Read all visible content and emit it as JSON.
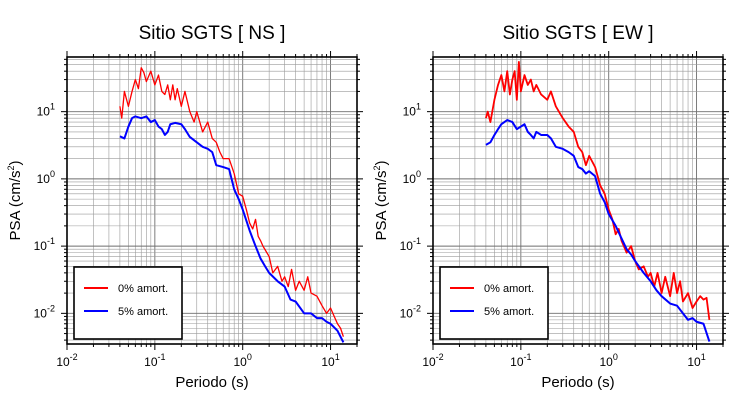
{
  "chart_data": [
    {
      "type": "line",
      "title": "Sitio SGTS [ NS ]",
      "xlabel": "Periodo (s)",
      "ylabel_base": "PSA (cm/s",
      "ylabel_sup": "2",
      "ylabel_end": ")",
      "xscale": "log",
      "yscale": "log",
      "xlim": [
        0.01,
        20
      ],
      "ylim": [
        0.0035,
        65
      ],
      "grid": true,
      "legend_position": "bottom-left",
      "x_ticks": [
        {
          "value": 0.01,
          "base": "10",
          "exp": "-2"
        },
        {
          "value": 0.1,
          "base": "10",
          "exp": "-1"
        },
        {
          "value": 1,
          "base": "10",
          "exp": "0"
        },
        {
          "value": 10,
          "base": "10",
          "exp": "1"
        }
      ],
      "y_ticks": [
        {
          "value": 0.01,
          "base": "10",
          "exp": "-2"
        },
        {
          "value": 0.1,
          "base": "10",
          "exp": "-1"
        },
        {
          "value": 1,
          "base": "10",
          "exp": "0"
        },
        {
          "value": 10,
          "base": "10",
          "exp": "1"
        }
      ],
      "series": [
        {
          "name": "0% amort.",
          "color": "#ff0000",
          "width": 1.3,
          "points": [
            [
              0.04,
              12
            ],
            [
              0.042,
              8
            ],
            [
              0.045,
              20
            ],
            [
              0.05,
              12
            ],
            [
              0.055,
              20
            ],
            [
              0.06,
              30
            ],
            [
              0.065,
              22
            ],
            [
              0.07,
              45
            ],
            [
              0.075,
              38
            ],
            [
              0.08,
              28
            ],
            [
              0.09,
              40
            ],
            [
              0.1,
              25
            ],
            [
              0.11,
              35
            ],
            [
              0.12,
              20
            ],
            [
              0.13,
              18
            ],
            [
              0.14,
              25
            ],
            [
              0.15,
              15
            ],
            [
              0.16,
              25
            ],
            [
              0.17,
              15
            ],
            [
              0.18,
              22
            ],
            [
              0.2,
              12
            ],
            [
              0.22,
              20
            ],
            [
              0.25,
              10
            ],
            [
              0.28,
              7
            ],
            [
              0.3,
              10
            ],
            [
              0.35,
              5
            ],
            [
              0.4,
              7
            ],
            [
              0.45,
              4
            ],
            [
              0.5,
              3.5
            ],
            [
              0.55,
              2.5
            ],
            [
              0.6,
              2
            ],
            [
              0.7,
              2
            ],
            [
              0.8,
              1.2
            ],
            [
              0.9,
              0.6
            ],
            [
              1.0,
              0.55
            ],
            [
              1.1,
              0.35
            ],
            [
              1.2,
              0.22
            ],
            [
              1.3,
              0.18
            ],
            [
              1.4,
              0.25
            ],
            [
              1.5,
              0.14
            ],
            [
              1.6,
              0.12
            ],
            [
              1.7,
              0.1
            ],
            [
              2.0,
              0.07
            ],
            [
              2.2,
              0.04
            ],
            [
              2.5,
              0.05
            ],
            [
              2.8,
              0.03
            ],
            [
              3.0,
              0.035
            ],
            [
              3.3,
              0.025
            ],
            [
              3.6,
              0.045
            ],
            [
              4.0,
              0.022
            ],
            [
              4.4,
              0.03
            ],
            [
              5.0,
              0.022
            ],
            [
              5.5,
              0.035
            ],
            [
              6.0,
              0.02
            ],
            [
              7.0,
              0.018
            ],
            [
              8.0,
              0.013
            ],
            [
              9.0,
              0.01
            ],
            [
              10.0,
              0.012
            ],
            [
              11.0,
              0.009
            ],
            [
              12.0,
              0.007
            ],
            [
              13.0,
              0.006
            ],
            [
              14.0,
              0.0045
            ]
          ]
        },
        {
          "name": "5% amort.",
          "color": "#0000ff",
          "width": 2,
          "points": [
            [
              0.04,
              4.3
            ],
            [
              0.045,
              4
            ],
            [
              0.05,
              6
            ],
            [
              0.055,
              8
            ],
            [
              0.06,
              8.5
            ],
            [
              0.07,
              8
            ],
            [
              0.08,
              8.5
            ],
            [
              0.09,
              7
            ],
            [
              0.1,
              7.5
            ],
            [
              0.11,
              6
            ],
            [
              0.12,
              5.5
            ],
            [
              0.13,
              4.5
            ],
            [
              0.14,
              5
            ],
            [
              0.15,
              6.5
            ],
            [
              0.17,
              6.8
            ],
            [
              0.2,
              6.5
            ],
            [
              0.22,
              5.5
            ],
            [
              0.25,
              4.2
            ],
            [
              0.3,
              3.5
            ],
            [
              0.35,
              3
            ],
            [
              0.4,
              2.8
            ],
            [
              0.45,
              2.5
            ],
            [
              0.5,
              1.6
            ],
            [
              0.6,
              1.5
            ],
            [
              0.7,
              1.4
            ],
            [
              0.8,
              0.7
            ],
            [
              0.9,
              0.5
            ],
            [
              1.0,
              0.35
            ],
            [
              1.2,
              0.17
            ],
            [
              1.4,
              0.1
            ],
            [
              1.6,
              0.065
            ],
            [
              1.8,
              0.05
            ],
            [
              2.0,
              0.04
            ],
            [
              2.5,
              0.03
            ],
            [
              3.0,
              0.025
            ],
            [
              3.5,
              0.016
            ],
            [
              4.0,
              0.015
            ],
            [
              5.0,
              0.01
            ],
            [
              6.0,
              0.01
            ],
            [
              7.0,
              0.0085
            ],
            [
              8.0,
              0.0085
            ],
            [
              9.0,
              0.0075
            ],
            [
              10.0,
              0.007
            ],
            [
              12.0,
              0.0055
            ],
            [
              14.0,
              0.0037
            ]
          ]
        }
      ]
    },
    {
      "type": "line",
      "title": "Sitio SGTS [ EW ]",
      "xlabel": "Periodo (s)",
      "ylabel_base": "PSA (cm/s",
      "ylabel_sup": "2",
      "ylabel_end": ")",
      "xscale": "log",
      "yscale": "log",
      "xlim": [
        0.01,
        20
      ],
      "ylim": [
        0.0035,
        65
      ],
      "grid": true,
      "legend_position": "bottom-left",
      "x_ticks": [
        {
          "value": 0.01,
          "base": "10",
          "exp": "-2"
        },
        {
          "value": 0.1,
          "base": "10",
          "exp": "-1"
        },
        {
          "value": 1,
          "base": "10",
          "exp": "0"
        },
        {
          "value": 10,
          "base": "10",
          "exp": "1"
        }
      ],
      "y_ticks": [
        {
          "value": 0.01,
          "base": "10",
          "exp": "-2"
        },
        {
          "value": 0.1,
          "base": "10",
          "exp": "-1"
        },
        {
          "value": 1,
          "base": "10",
          "exp": "0"
        },
        {
          "value": 10,
          "base": "10",
          "exp": "1"
        }
      ],
      "series": [
        {
          "name": "0% amort.",
          "color": "#ff0000",
          "width": 1.8,
          "points": [
            [
              0.04,
              8
            ],
            [
              0.042,
              10
            ],
            [
              0.045,
              7
            ],
            [
              0.05,
              15
            ],
            [
              0.055,
              25
            ],
            [
              0.06,
              35
            ],
            [
              0.065,
              20
            ],
            [
              0.07,
              40
            ],
            [
              0.075,
              18
            ],
            [
              0.08,
              30
            ],
            [
              0.085,
              40
            ],
            [
              0.09,
              15
            ],
            [
              0.095,
              55
            ],
            [
              0.1,
              20
            ],
            [
              0.11,
              35
            ],
            [
              0.12,
              25
            ],
            [
              0.13,
              30
            ],
            [
              0.14,
              20
            ],
            [
              0.15,
              25
            ],
            [
              0.17,
              18
            ],
            [
              0.2,
              15
            ],
            [
              0.22,
              20
            ],
            [
              0.25,
              12
            ],
            [
              0.3,
              8
            ],
            [
              0.35,
              6
            ],
            [
              0.4,
              5
            ],
            [
              0.45,
              3
            ],
            [
              0.5,
              2.5
            ],
            [
              0.55,
              1.6
            ],
            [
              0.6,
              2.2
            ],
            [
              0.7,
              1.5
            ],
            [
              0.8,
              0.8
            ],
            [
              0.9,
              0.6
            ],
            [
              1.0,
              0.35
            ],
            [
              1.1,
              0.25
            ],
            [
              1.2,
              0.15
            ],
            [
              1.3,
              0.18
            ],
            [
              1.4,
              0.12
            ],
            [
              1.6,
              0.08
            ],
            [
              1.8,
              0.1
            ],
            [
              2.0,
              0.06
            ],
            [
              2.2,
              0.045
            ],
            [
              2.5,
              0.05
            ],
            [
              2.8,
              0.035
            ],
            [
              3.0,
              0.04
            ],
            [
              3.3,
              0.025
            ],
            [
              3.6,
              0.04
            ],
            [
              4.0,
              0.02
            ],
            [
              4.4,
              0.035
            ],
            [
              5.0,
              0.018
            ],
            [
              5.5,
              0.04
            ],
            [
              6.0,
              0.02
            ],
            [
              6.5,
              0.03
            ],
            [
              7.0,
              0.015
            ],
            [
              8.0,
              0.02
            ],
            [
              9.0,
              0.012
            ],
            [
              10.0,
              0.015
            ],
            [
              11.0,
              0.018
            ],
            [
              12.0,
              0.016
            ],
            [
              13.0,
              0.017
            ],
            [
              14.0,
              0.008
            ]
          ]
        },
        {
          "name": "5% amort.",
          "color": "#0000ff",
          "width": 2,
          "points": [
            [
              0.04,
              3.2
            ],
            [
              0.045,
              3.5
            ],
            [
              0.05,
              4.5
            ],
            [
              0.055,
              5.5
            ],
            [
              0.06,
              6.5
            ],
            [
              0.07,
              7.5
            ],
            [
              0.08,
              7
            ],
            [
              0.09,
              5.5
            ],
            [
              0.1,
              6
            ],
            [
              0.11,
              6.5
            ],
            [
              0.12,
              5
            ],
            [
              0.13,
              4.5
            ],
            [
              0.14,
              4
            ],
            [
              0.15,
              5
            ],
            [
              0.17,
              4.5
            ],
            [
              0.2,
              4.5
            ],
            [
              0.22,
              4
            ],
            [
              0.25,
              3
            ],
            [
              0.3,
              2.8
            ],
            [
              0.35,
              2.5
            ],
            [
              0.4,
              2.2
            ],
            [
              0.45,
              1.5
            ],
            [
              0.5,
              1.4
            ],
            [
              0.55,
              1.2
            ],
            [
              0.6,
              1.3
            ],
            [
              0.7,
              1.1
            ],
            [
              0.8,
              0.6
            ],
            [
              0.9,
              0.45
            ],
            [
              1.0,
              0.3
            ],
            [
              1.2,
              0.2
            ],
            [
              1.4,
              0.13
            ],
            [
              1.6,
              0.09
            ],
            [
              1.8,
              0.075
            ],
            [
              2.0,
              0.06
            ],
            [
              2.5,
              0.04
            ],
            [
              3.0,
              0.03
            ],
            [
              3.5,
              0.022
            ],
            [
              4.0,
              0.018
            ],
            [
              5.0,
              0.014
            ],
            [
              6.0,
              0.013
            ],
            [
              7.0,
              0.01
            ],
            [
              8.0,
              0.008
            ],
            [
              9.0,
              0.0085
            ],
            [
              10.0,
              0.0075
            ],
            [
              12.0,
              0.007
            ],
            [
              14.0,
              0.0038
            ]
          ]
        }
      ]
    }
  ]
}
